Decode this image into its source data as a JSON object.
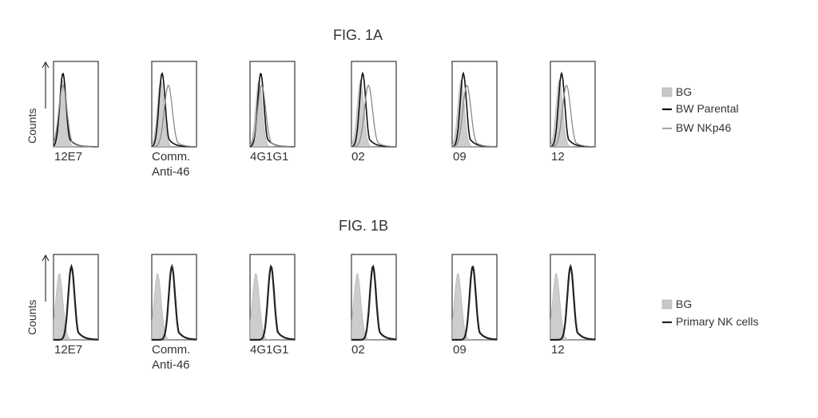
{
  "colors": {
    "bg_fill": "#c8c8c8",
    "parental": "#111111",
    "nkp46": "#8a8a8a",
    "primary": "#222222"
  },
  "chart_data": [
    {
      "type": "histogram",
      "title": "FIG. 1A",
      "ylabel": "Counts",
      "panels": [
        {
          "label": "12E7"
        },
        {
          "label": "Comm.\nAnti-46"
        },
        {
          "label": "4G1G1"
        },
        {
          "label": "02"
        },
        {
          "label": "09"
        },
        {
          "label": "12"
        }
      ],
      "legend": [
        "BG",
        "BW Parental",
        "BW NKp46"
      ],
      "series": [
        {
          "name": "BG",
          "style": "filled",
          "peaks": [
            0.2,
            0.2,
            0.2,
            0.2,
            0.2,
            0.2
          ]
        },
        {
          "name": "BW Parental",
          "style": "solid",
          "peaks": [
            0.21,
            0.23,
            0.24,
            0.25,
            0.25,
            0.25
          ]
        },
        {
          "name": "BW NKp46",
          "style": "thin",
          "peaks": [
            0.21,
            0.37,
            0.26,
            0.38,
            0.33,
            0.36
          ]
        }
      ]
    },
    {
      "type": "histogram",
      "title": "FIG. 1B",
      "ylabel": "Counts",
      "panels": [
        {
          "label": "12E7"
        },
        {
          "label": "Comm.\nAnti-46"
        },
        {
          "label": "4G1G1"
        },
        {
          "label": "02"
        },
        {
          "label": "09"
        },
        {
          "label": "12"
        }
      ],
      "legend": [
        "BG",
        "Primary NK cells"
      ],
      "series": [
        {
          "name": "BG",
          "style": "filled",
          "peaks": [
            0.13,
            0.13,
            0.13,
            0.13,
            0.13,
            0.13
          ]
        },
        {
          "name": "Primary NK cells",
          "style": "solid",
          "peaks": [
            0.4,
            0.45,
            0.47,
            0.48,
            0.46,
            0.45
          ]
        }
      ]
    }
  ]
}
